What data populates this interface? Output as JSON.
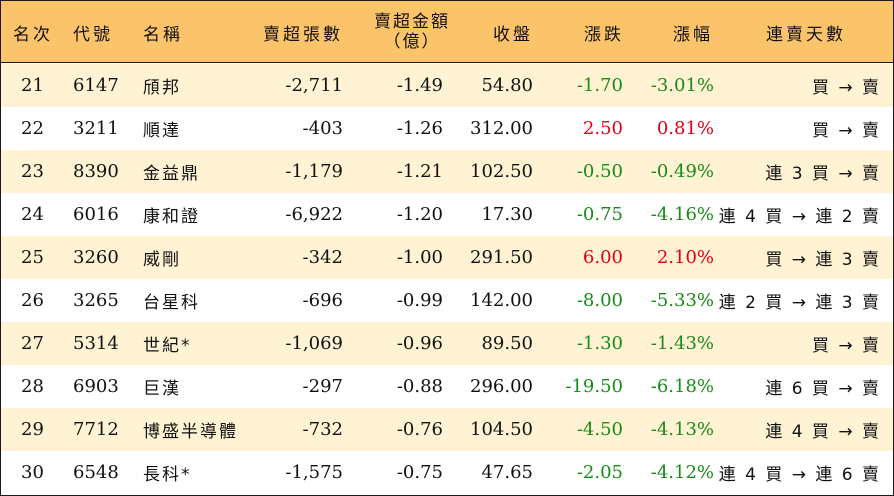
{
  "header": {
    "rank": "名次",
    "code": "代號",
    "name": "名稱",
    "net_sell_lots": "賣超張數",
    "net_sell_amount_line1": "賣超金額",
    "net_sell_amount_line2": "（億）",
    "close": "收盤",
    "change": "漲跌",
    "change_pct": "漲幅",
    "streak": "連賣天數"
  },
  "colors": {
    "header_bg": "#fbc36a",
    "odd_row_bg": "#fff3d3",
    "up": "#e0001a",
    "down": "#1a8a1a"
  },
  "rows": [
    {
      "rank": "21",
      "code": "6147",
      "name": "頎邦",
      "lots": "-2,711",
      "amount": "-1.49",
      "close": "54.80",
      "change": "-1.70",
      "pct": "-3.01%",
      "dir": "down",
      "streak": "買 → 賣"
    },
    {
      "rank": "22",
      "code": "3211",
      "name": "順達",
      "lots": "-403",
      "amount": "-1.26",
      "close": "312.00",
      "change": "2.50",
      "pct": "0.81%",
      "dir": "up",
      "streak": "買 → 賣"
    },
    {
      "rank": "23",
      "code": "8390",
      "name": "金益鼎",
      "lots": "-1,179",
      "amount": "-1.21",
      "close": "102.50",
      "change": "-0.50",
      "pct": "-0.49%",
      "dir": "down",
      "streak": "連 3 買 → 賣"
    },
    {
      "rank": "24",
      "code": "6016",
      "name": "康和證",
      "lots": "-6,922",
      "amount": "-1.20",
      "close": "17.30",
      "change": "-0.75",
      "pct": "-4.16%",
      "dir": "down",
      "streak": "連 4 買 → 連 2 賣"
    },
    {
      "rank": "25",
      "code": "3260",
      "name": "威剛",
      "lots": "-342",
      "amount": "-1.00",
      "close": "291.50",
      "change": "6.00",
      "pct": "2.10%",
      "dir": "up",
      "streak": "買 → 連 3 賣"
    },
    {
      "rank": "26",
      "code": "3265",
      "name": "台星科",
      "lots": "-696",
      "amount": "-0.99",
      "close": "142.00",
      "change": "-8.00",
      "pct": "-5.33%",
      "dir": "down",
      "streak": "連 2 買 → 連 3 賣"
    },
    {
      "rank": "27",
      "code": "5314",
      "name": "世紀*",
      "lots": "-1,069",
      "amount": "-0.96",
      "close": "89.50",
      "change": "-1.30",
      "pct": "-1.43%",
      "dir": "down",
      "streak": "買 → 賣"
    },
    {
      "rank": "28",
      "code": "6903",
      "name": "巨漢",
      "lots": "-297",
      "amount": "-0.88",
      "close": "296.00",
      "change": "-19.50",
      "pct": "-6.18%",
      "dir": "down",
      "streak": "連 6 買 → 賣"
    },
    {
      "rank": "29",
      "code": "7712",
      "name": "博盛半導體",
      "lots": "-732",
      "amount": "-0.76",
      "close": "104.50",
      "change": "-4.50",
      "pct": "-4.13%",
      "dir": "down",
      "streak": "連 4 買 → 賣"
    },
    {
      "rank": "30",
      "code": "6548",
      "name": "長科*",
      "lots": "-1,575",
      "amount": "-0.75",
      "close": "47.65",
      "change": "-2.05",
      "pct": "-4.12%",
      "dir": "down",
      "streak": "連 4 買 → 連 6 賣"
    }
  ]
}
